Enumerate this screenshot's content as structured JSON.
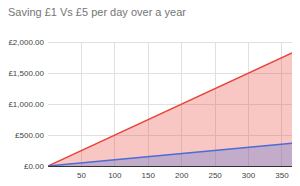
{
  "chart_data": {
    "type": "area",
    "title": "Saving £1 Vs £5 per day over a year",
    "x": [
      0,
      365
    ],
    "series": [
      {
        "color": "#e8453c",
        "values": [
          0,
          1825
        ]
      },
      {
        "color": "#4a6cd4",
        "values": [
          0,
          365
        ]
      }
    ],
    "xlim": [
      0,
      365
    ],
    "xticks": [
      50,
      100,
      150,
      200,
      250,
      300,
      350
    ],
    "ylim": [
      0,
      2000
    ],
    "yticks": [
      {
        "value": 0,
        "label": "£0.00"
      },
      {
        "value": 500,
        "label": "£500.00"
      },
      {
        "value": 1000,
        "label": "£1,000.00"
      },
      {
        "value": 1500,
        "label": "£1,500.00"
      },
      {
        "value": 2000,
        "label": "£2,000.00"
      }
    ],
    "grid": true
  }
}
